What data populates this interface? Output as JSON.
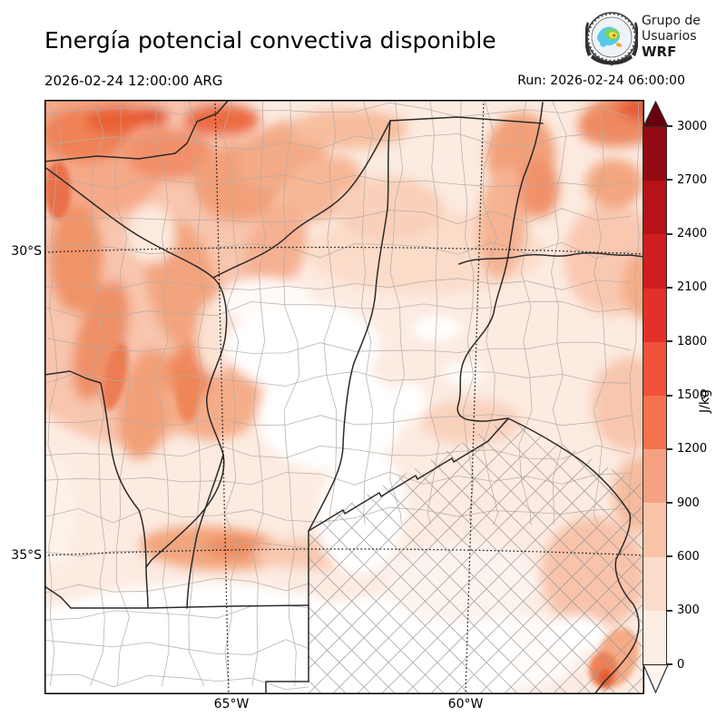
{
  "header": {
    "title": "Energía potencial convectiva disponible"
  },
  "logo": {
    "line1": "Grupo de",
    "line2": "Usuarios",
    "line3": "WRF"
  },
  "times": {
    "valid": "2026-02-24 12:00:00 ARG",
    "run": "Run: 2026-02-24 06:00:00"
  },
  "axes": {
    "lat": [
      {
        "label": "30°S"
      },
      {
        "label": "35°S"
      }
    ],
    "lon": [
      {
        "label": "65°W"
      },
      {
        "label": "60°W"
      }
    ]
  },
  "colorbar": {
    "units": "J/kg",
    "tick_values": [
      "0",
      "300",
      "600",
      "900",
      "1200",
      "1500",
      "1800",
      "2100",
      "2400",
      "2700",
      "3000"
    ],
    "segment_colors": [
      "#fdeee4",
      "#fbdcca",
      "#f9c3a8",
      "#f7a183",
      "#f4724e",
      "#f0513b",
      "#e3302a",
      "#d01d21",
      "#b51319",
      "#920a13"
    ],
    "under_color": "#fff5f0",
    "over_color": "#67000d"
  }
}
